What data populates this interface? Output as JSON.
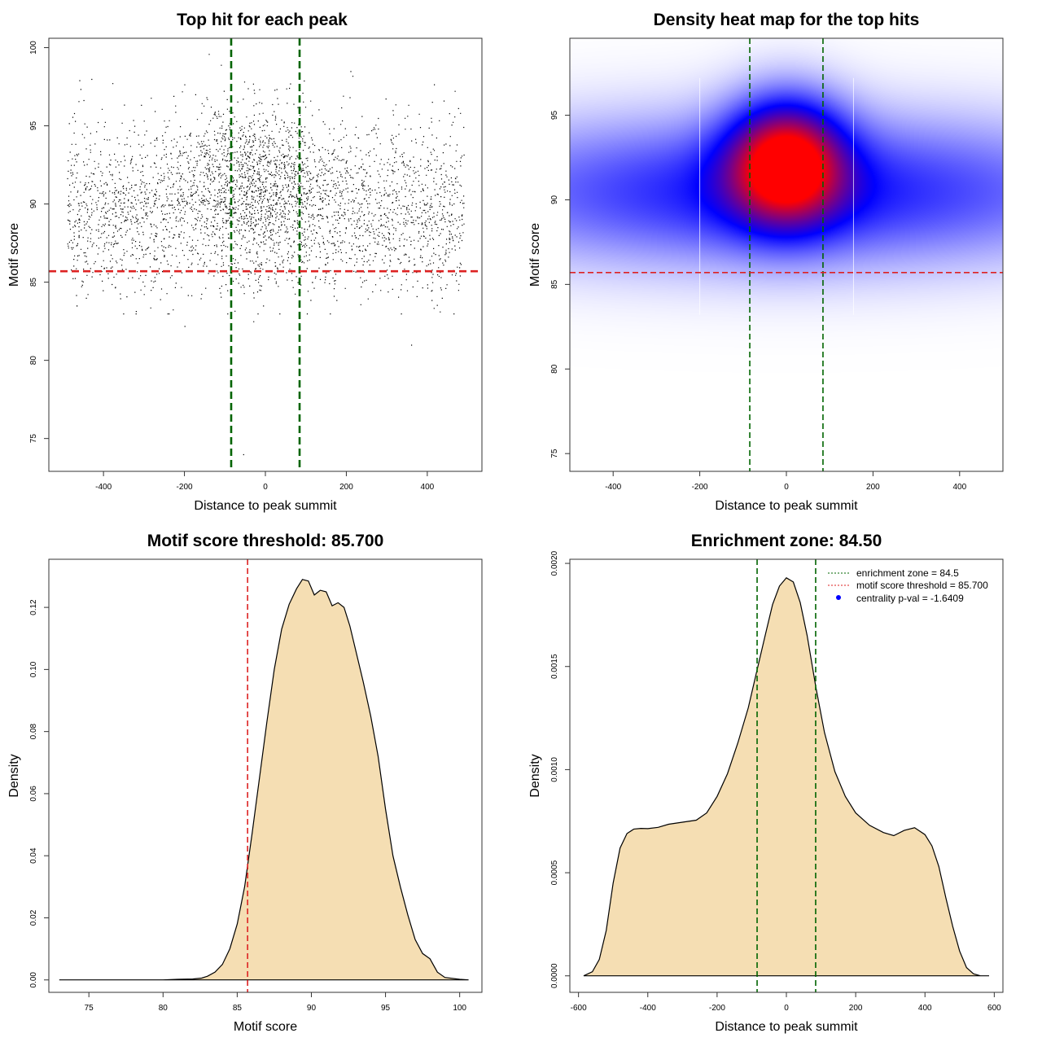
{
  "figure": {
    "background": "#ffffff"
  },
  "colors": {
    "threshold_line": "#dd2222",
    "zone_line": "#006400",
    "density_fill": "#f5deb3",
    "heat_low": "#ffffff",
    "heat_mid": "#0000ff",
    "heat_high": "#ff0000",
    "legend_point": "#0000ff"
  },
  "chart_data": [
    {
      "type": "scatter",
      "title": "Top hit for each peak",
      "xlabel": "Distance to peak summit",
      "ylabel": "Motif score",
      "xlim": [
        -535,
        535
      ],
      "ylim": [
        72.9,
        100.6
      ],
      "xticks": [
        -400,
        -200,
        0,
        200,
        400
      ],
      "xtick_labels": [
        "-400",
        "-200",
        "0",
        "200",
        "400"
      ],
      "yticks": [
        75,
        80,
        85,
        90,
        95,
        100
      ],
      "ytick_labels": [
        "75",
        "80",
        "85",
        "90",
        "95",
        "100"
      ],
      "grid": false,
      "point_color": "#000000",
      "n_points_approx": 9000,
      "x_range": [
        -490,
        490
      ],
      "main_band": [
        84,
        98
      ],
      "central_cluster": {
        "x_center": -20,
        "x_sd": 90,
        "y_center": 91.5,
        "y_sd": 2.5
      },
      "outliers": [
        {
          "x": -200,
          "y": 82.2
        },
        {
          "x": -55,
          "y": 74.0
        },
        {
          "x": 360,
          "y": 81.0
        },
        {
          "x": -30,
          "y": 82.5
        },
        {
          "x": -140,
          "y": 99.6
        },
        {
          "x": -110,
          "y": 98.9
        },
        {
          "x": 95,
          "y": 97.9
        },
        {
          "x": 210,
          "y": 98.5
        },
        {
          "x": 215,
          "y": 98.2
        },
        {
          "x": -430,
          "y": 98.0
        }
      ],
      "hlines": [
        {
          "y": 85.7,
          "color": "#dd2222"
        }
      ],
      "vlines": [
        {
          "x": -84.5,
          "color": "#006400"
        },
        {
          "x": 84.5,
          "color": "#006400"
        }
      ]
    },
    {
      "type": "heatmap",
      "title": "Density heat map for the top hits",
      "xlabel": "Distance to peak summit",
      "ylabel": "Motif score",
      "xlim": [
        -500,
        500
      ],
      "ylim": [
        73.95,
        99.55
      ],
      "xticks": [
        -400,
        -200,
        0,
        200,
        400
      ],
      "xtick_labels": [
        "-400",
        "-200",
        "0",
        "200",
        "400"
      ],
      "yticks": [
        75,
        80,
        85,
        90,
        95
      ],
      "ytick_labels": [
        "75",
        "80",
        "85",
        "90",
        "95"
      ],
      "grid": false,
      "color_scale": [
        "#ffffff",
        "#0000ff",
        "#ff0000"
      ],
      "density_components": [
        {
          "x": 0,
          "y": 92.2,
          "sx": 90,
          "sy": 2.4,
          "w": 1.0
        },
        {
          "x": 0,
          "y": 90.5,
          "sx": 500,
          "sy": 2.8,
          "w": 0.42
        }
      ],
      "seams_x": [
        -200,
        155
      ],
      "hlines": [
        {
          "y": 85.7,
          "color": "#dd2222"
        }
      ],
      "vlines": [
        {
          "x": -84.5,
          "color": "#006400"
        },
        {
          "x": 84.5,
          "color": "#006400"
        }
      ]
    },
    {
      "type": "area",
      "title": "Motif score threshold: 85.700",
      "xlabel": "Motif score",
      "ylabel": "Density",
      "xlim": [
        72.3,
        101.5
      ],
      "ylim": [
        -0.004,
        0.1355
      ],
      "xticks": [
        75,
        80,
        85,
        90,
        95,
        100
      ],
      "xtick_labels": [
        "75",
        "80",
        "85",
        "90",
        "95",
        "100"
      ],
      "yticks": [
        0,
        0.02,
        0.04,
        0.06,
        0.08,
        0.1,
        0.12
      ],
      "ytick_labels": [
        "0.00",
        "0.02",
        "0.04",
        "0.06",
        "0.08",
        "0.10",
        "0.12"
      ],
      "grid": false,
      "x": [
        73.0,
        80.0,
        81.0,
        82.0,
        82.6,
        83.0,
        83.5,
        84.0,
        84.5,
        85.0,
        85.5,
        86.0,
        86.5,
        87.0,
        87.5,
        88.0,
        88.5,
        89.0,
        89.4,
        89.8,
        90.2,
        90.6,
        91.0,
        91.4,
        91.8,
        92.2,
        92.6,
        93.0,
        93.5,
        94.0,
        94.5,
        95.0,
        95.5,
        96.0,
        96.5,
        97.0,
        97.5,
        98.0,
        98.5,
        99.0,
        100.0,
        100.6
      ],
      "y": [
        0.0,
        0.0,
        0.0002,
        0.0003,
        0.0006,
        0.0012,
        0.0025,
        0.005,
        0.01,
        0.018,
        0.03,
        0.047,
        0.065,
        0.083,
        0.1,
        0.113,
        0.121,
        0.126,
        0.129,
        0.1285,
        0.124,
        0.1255,
        0.125,
        0.1205,
        0.1215,
        0.12,
        0.114,
        0.106,
        0.096,
        0.085,
        0.072,
        0.055,
        0.04,
        0.03,
        0.021,
        0.013,
        0.0085,
        0.0068,
        0.0025,
        0.0008,
        0.0002,
        0.0
      ],
      "vlines": [
        {
          "x": 85.7,
          "color": "#dd2222"
        }
      ]
    },
    {
      "type": "area",
      "title": "Enrichment zone: 84.50",
      "xlabel": "Distance to peak summit",
      "ylabel": "Density",
      "xlim": [
        -625,
        625
      ],
      "ylim": [
        -8e-05,
        0.00202
      ],
      "xticks": [
        -600,
        -400,
        -200,
        0,
        200,
        400,
        600
      ],
      "xtick_labels": [
        "-600",
        "-400",
        "-200",
        "0",
        "200",
        "400",
        "600"
      ],
      "yticks": [
        0,
        0.0005,
        0.001,
        0.0015,
        0.002
      ],
      "ytick_labels": [
        "0.0000",
        "0.0005",
        "0.0010",
        "0.0015",
        "0.0020"
      ],
      "grid": false,
      "x": [
        -585,
        -560,
        -540,
        -520,
        -500,
        -480,
        -460,
        -440,
        -420,
        -400,
        -370,
        -340,
        -300,
        -260,
        -230,
        -200,
        -170,
        -140,
        -110,
        -85,
        -60,
        -40,
        -20,
        0,
        20,
        40,
        60,
        85,
        110,
        140,
        170,
        200,
        240,
        280,
        310,
        340,
        370,
        400,
        420,
        440,
        460,
        480,
        500,
        520,
        540,
        560,
        585
      ],
      "y": [
        0.0,
        2e-05,
        8e-05,
        0.00022,
        0.00045,
        0.00062,
        0.00069,
        0.000712,
        0.000715,
        0.000714,
        0.00072,
        0.000735,
        0.000745,
        0.000755,
        0.00079,
        0.00087,
        0.00098,
        0.00113,
        0.0013,
        0.00148,
        0.00166,
        0.0018,
        0.00189,
        0.00193,
        0.00191,
        0.00181,
        0.00165,
        0.0014,
        0.00118,
        0.00099,
        0.00087,
        0.00079,
        0.00073,
        0.000695,
        0.00068,
        0.000705,
        0.000718,
        0.000685,
        0.00063,
        0.00053,
        0.00038,
        0.00024,
        0.00012,
        4e-05,
        1e-05,
        0.0,
        0.0
      ],
      "vlines": [
        {
          "x": -84.5,
          "color": "#006400"
        },
        {
          "x": 84.5,
          "color": "#006400"
        }
      ],
      "legend": {
        "placement": "top-right",
        "entries": [
          {
            "label": "enrichment zone = 84.5",
            "kind": "line",
            "color": "#006400"
          },
          {
            "label": "motif score threshold = 85.700",
            "kind": "line",
            "color": "#dd2222"
          },
          {
            "label": "centrality p-val = -1.6409",
            "kind": "point",
            "color": "#0000ff"
          }
        ]
      }
    }
  ]
}
